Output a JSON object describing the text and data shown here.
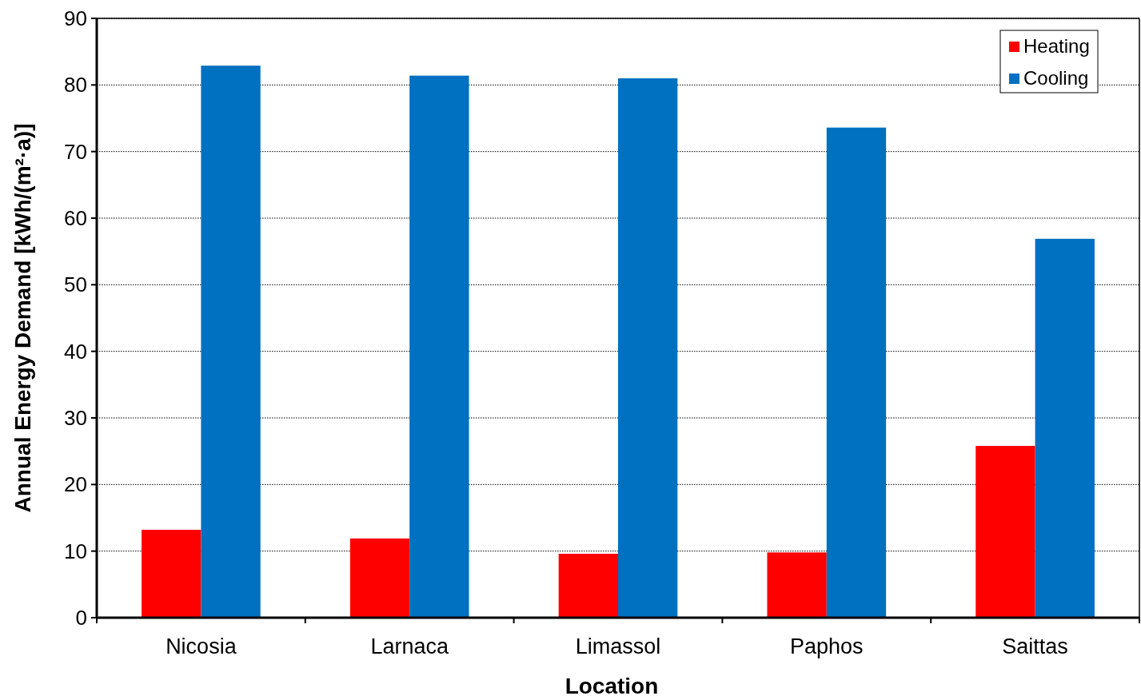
{
  "chart_data": {
    "type": "bar",
    "xlabel": "Location",
    "ylabel": "Annual Energy Demand [kWh/(m²·a)]",
    "categories": [
      "Nicosia",
      "Larnaca",
      "Limassol",
      "Paphos",
      "Saittas"
    ],
    "series": [
      {
        "name": "Heating",
        "color": "#ff0000",
        "values": [
          13.2,
          11.9,
          9.6,
          9.8,
          25.8
        ]
      },
      {
        "name": "Cooling",
        "color": "#0070c0",
        "values": [
          82.9,
          81.4,
          81.0,
          73.6,
          56.9
        ]
      }
    ],
    "ylim": [
      0,
      90
    ],
    "yticks": [
      0,
      10,
      20,
      30,
      40,
      50,
      60,
      70,
      80,
      90
    ],
    "grid": "y",
    "legend": "top right"
  }
}
